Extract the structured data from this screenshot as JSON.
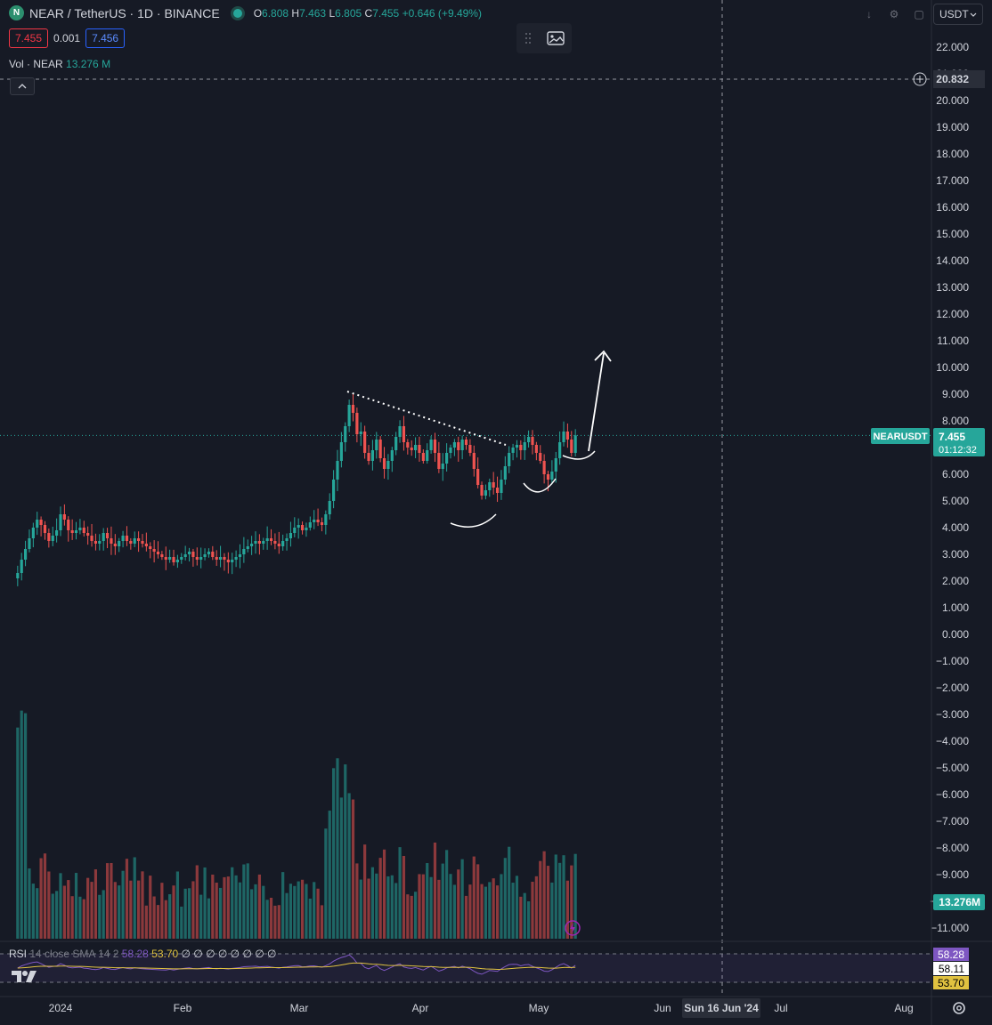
{
  "header": {
    "symbol": "NEAR / TetherUS · 1D · BINANCE",
    "logo_text": "N",
    "open_label": "O",
    "open": "6.808",
    "high_label": "H",
    "high": "7.463",
    "low_label": "L",
    "low": "6.805",
    "close_label": "C",
    "close": "7.455",
    "change": "+0.646 (+9.49%)"
  },
  "quote": {
    "bid": "7.455",
    "spread": "0.001",
    "ask": "7.456"
  },
  "volume_legend": {
    "label": "Vol · NEAR",
    "value": "13.276 M"
  },
  "currency_selector": {
    "value": "USDT"
  },
  "price_axis": {
    "labels": [
      "22.000",
      "21.000",
      "20.000",
      "19.000",
      "18.000",
      "17.000",
      "16.000",
      "15.000",
      "14.000",
      "13.000",
      "12.000",
      "11.000",
      "10.000",
      "9.000",
      "8.000",
      "7.000",
      "6.000",
      "5.000",
      "4.000",
      "3.000",
      "2.000",
      "1.000",
      "0.000",
      "−1.000",
      "−2.000",
      "−3.000",
      "−4.000",
      "−5.000",
      "−6.000",
      "−7.000",
      "−8.000",
      "−9.000",
      "−10.000",
      "−11.000"
    ],
    "crosshair_price": "20.832",
    "last_price": "7.455",
    "countdown": "01:12:32",
    "symbol_tag": "NEARUSDT",
    "volume_tag": "13.276M"
  },
  "time_axis": {
    "labels": [
      "2024",
      "Feb",
      "Mar",
      "Apr",
      "May",
      "Jun",
      "Jul",
      "Aug"
    ],
    "crosshair_date": "Sun 16 Jun '24"
  },
  "rsi": {
    "legend": "RSI",
    "params": "14 close SMA 14 2",
    "value": "58.28",
    "sma": "53.70",
    "extras": "∅ ∅ ∅ ∅ ∅ ∅ ∅ ∅",
    "axis_values": [
      "58.28",
      "58.11",
      "53.70"
    ]
  },
  "colors": {
    "up": "#26a69a",
    "down": "#ef5350",
    "rsi": "#7e57c2",
    "rsi_sma": "#e0c240",
    "bg": "#161a25"
  },
  "chart_data": {
    "type": "candlestick",
    "symbol": "NEARUSDT",
    "interval": "1D",
    "ylim": [
      -11.5,
      22.5
    ],
    "x_range": [
      "2023-12-21",
      "2024-08-20"
    ],
    "series": [
      {
        "name": "price",
        "note_ohlc": "approximate daily closes",
        "dates_start": "2023-12-21",
        "closes": [
          2.3,
          2.8,
          3.2,
          3.6,
          4.0,
          4.3,
          4.1,
          3.8,
          3.5,
          3.7,
          3.9,
          4.5,
          4.3,
          3.9,
          3.8,
          3.9,
          4.0,
          3.8,
          3.7,
          3.5,
          3.4,
          3.5,
          3.8,
          3.6,
          3.4,
          3.3,
          3.5,
          3.7,
          3.5,
          3.4,
          3.6,
          3.5,
          3.4,
          3.3,
          3.2,
          3.1,
          3.0,
          2.9,
          2.8,
          2.9,
          2.7,
          2.8,
          2.9,
          3.0,
          3.1,
          2.9,
          2.8,
          2.9,
          3.0,
          3.1,
          2.9,
          2.8,
          2.9,
          2.8,
          2.7,
          2.8,
          2.9,
          3.0,
          3.2,
          3.3,
          3.4,
          3.5,
          3.4,
          3.5,
          3.6,
          3.5,
          3.4,
          3.3,
          3.5,
          3.6,
          3.8,
          4.0,
          4.1,
          3.9,
          4.0,
          4.2,
          4.3,
          4.2,
          4.1,
          4.5,
          5.0,
          5.8,
          6.5,
          7.2,
          7.8,
          8.6,
          8.3,
          7.5,
          7.6,
          6.8,
          6.5,
          6.9,
          7.3,
          6.6,
          6.2,
          6.5,
          6.9,
          7.4,
          7.8,
          7.2,
          7.0,
          6.9,
          7.1,
          6.8,
          6.5,
          6.9,
          7.3,
          6.8,
          6.2,
          6.4,
          6.8,
          7.0,
          7.2,
          6.9,
          7.3,
          7.1,
          6.8,
          6.2,
          5.6,
          5.2,
          5.4,
          5.7,
          5.5,
          5.3,
          5.8,
          6.3,
          6.8,
          7.0,
          7.1,
          6.9,
          7.2,
          7.4,
          7.1,
          6.8,
          6.5,
          6.0,
          5.8,
          6.1,
          6.6,
          7.2,
          7.6,
          7.3,
          6.8,
          7.455
        ]
      }
    ],
    "volume": {
      "label": "Vol · NEAR",
      "last": "13.276 M"
    },
    "rsi": {
      "length": 14,
      "last": 58.28,
      "sma": 53.7,
      "band_upper": 70,
      "band_lower": 30
    },
    "annotations": [
      "dotted descending trendline",
      "curved base arcs",
      "upward arrow"
    ]
  }
}
